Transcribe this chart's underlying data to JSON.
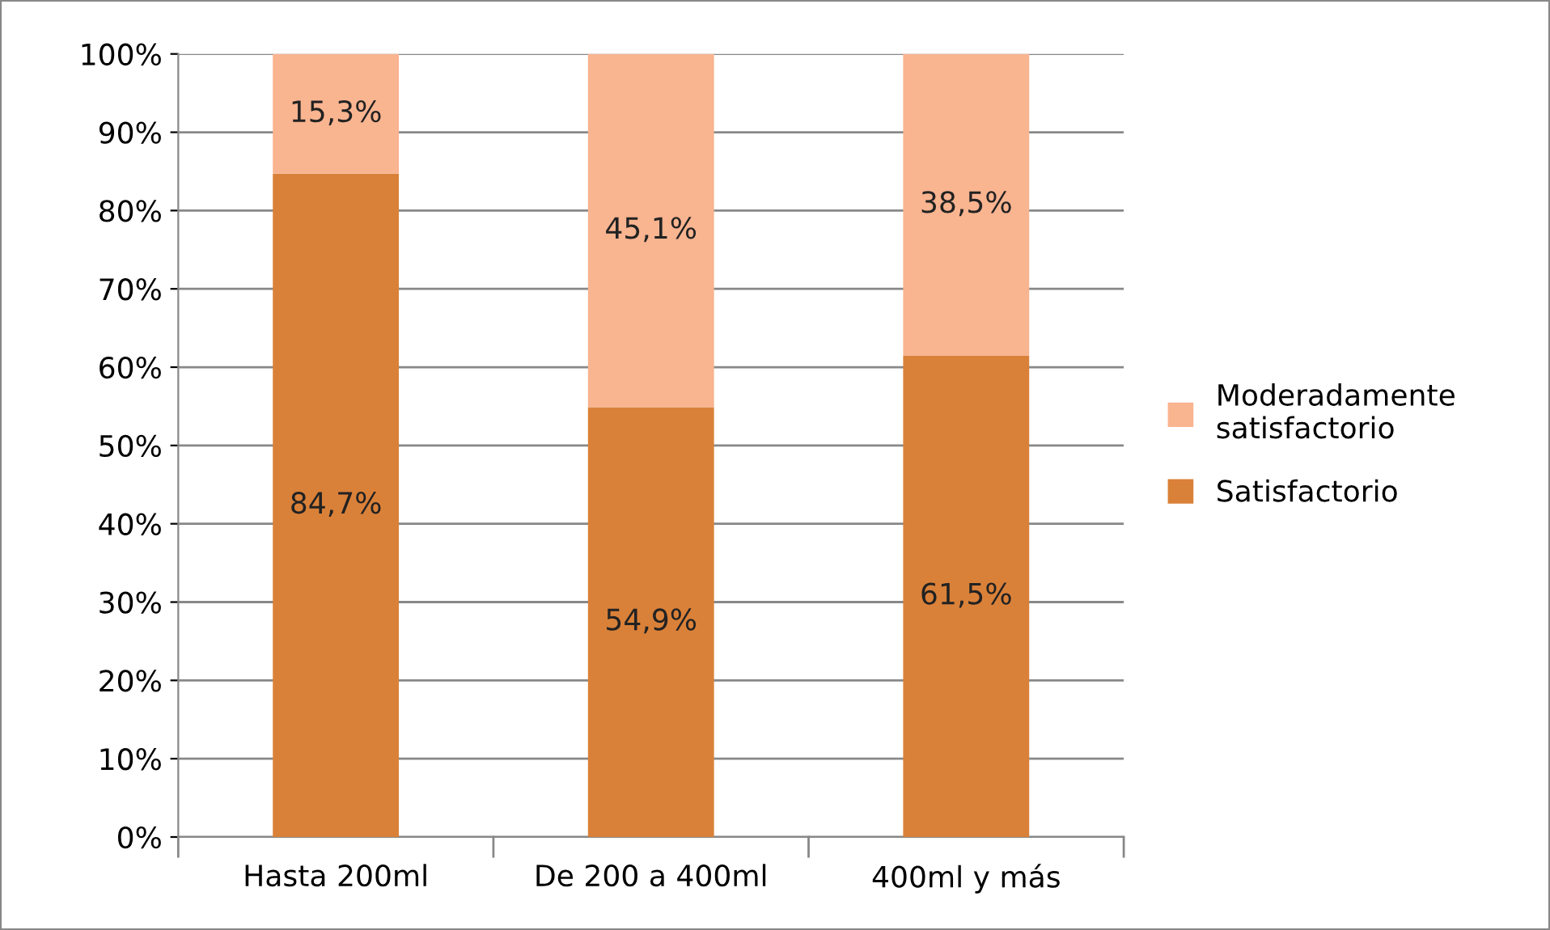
{
  "chart_data": {
    "type": "bar",
    "stacked": true,
    "categories": [
      "Hasta 200ml",
      "De 200 a 400ml",
      "400ml y más"
    ],
    "series": [
      {
        "name": "Satisfactorio",
        "color": "#da8139",
        "values": [
          84.7,
          54.9,
          61.5
        ],
        "value_labels": [
          "84,7%",
          "54,9%",
          "61,5%"
        ]
      },
      {
        "name": "Moderadamente\nsatisfactorio",
        "color": "#f9b490",
        "values": [
          15.3,
          45.1,
          38.5
        ],
        "value_labels": [
          "15,3%",
          "45,1%",
          "38,5%"
        ]
      }
    ],
    "ylim": [
      0,
      100
    ],
    "yticks": [
      {
        "value": 0,
        "label": "0%"
      },
      {
        "value": 10,
        "label": "10%"
      },
      {
        "value": 20,
        "label": "20%"
      },
      {
        "value": 30,
        "label": "30%"
      },
      {
        "value": 40,
        "label": "40%"
      },
      {
        "value": 50,
        "label": "50%"
      },
      {
        "value": 60,
        "label": "60%"
      },
      {
        "value": 70,
        "label": "70%"
      },
      {
        "value": 80,
        "label": "80%"
      },
      {
        "value": 90,
        "label": "90%"
      },
      {
        "value": 100,
        "label": "100%"
      }
    ],
    "grid": "y",
    "legend": "right"
  }
}
